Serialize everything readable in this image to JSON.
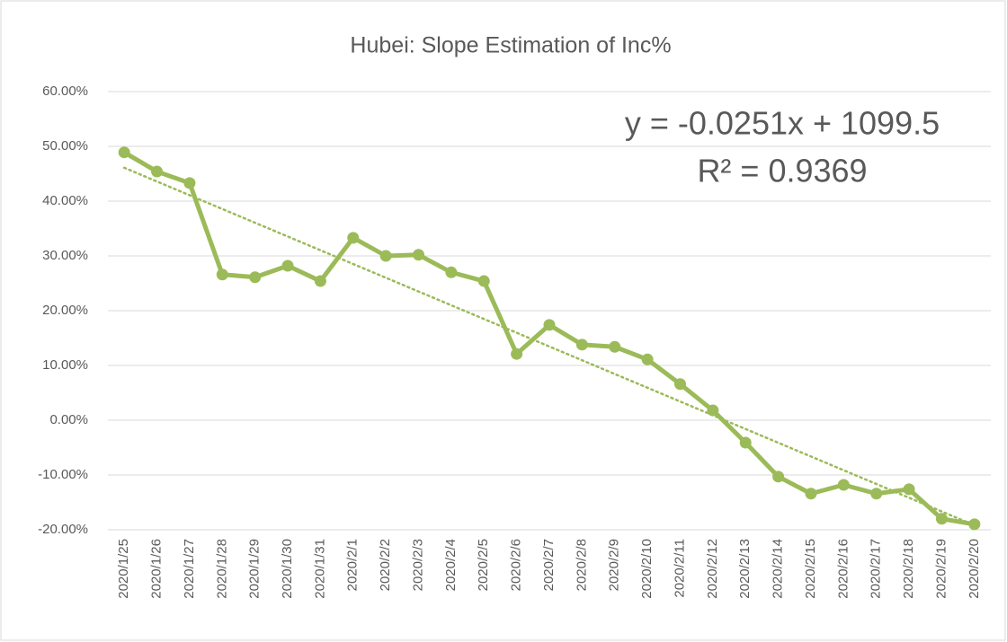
{
  "chart_data": {
    "type": "line",
    "title": "Hubei: Slope Estimation of Inc%",
    "annotations": [
      "y = -0.0251x + 1099.5",
      "R² = 0.9369"
    ],
    "categories": [
      "2020/1/25",
      "2020/1/26",
      "2020/1/27",
      "2020/1/28",
      "2020/1/29",
      "2020/1/30",
      "2020/1/31",
      "2020/2/1",
      "2020/2/2",
      "2020/2/3",
      "2020/2/4",
      "2020/2/5",
      "2020/2/6",
      "2020/2/7",
      "2020/2/8",
      "2020/2/9",
      "2020/2/10",
      "2020/2/11",
      "2020/2/12",
      "2020/2/13",
      "2020/2/14",
      "2020/2/15",
      "2020/2/16",
      "2020/2/17",
      "2020/2/18",
      "2020/2/19",
      "2020/2/20"
    ],
    "values": [
      48.9,
      45.4,
      43.3,
      26.6,
      26.1,
      28.2,
      25.4,
      33.3,
      30.0,
      30.2,
      27.0,
      25.4,
      12.1,
      17.4,
      13.8,
      13.4,
      11.1,
      6.6,
      1.8,
      -4.1,
      -10.3,
      -13.4,
      -11.8,
      -13.4,
      -12.6,
      -18.0,
      -19.0
    ],
    "color": "#9bbb59",
    "trendline": true,
    "ylim": [
      -20,
      60
    ],
    "yticks": [
      {
        "value": -20,
        "label": "-20.00%"
      },
      {
        "value": -10,
        "label": "-10.00%"
      },
      {
        "value": 0,
        "label": "0.00%"
      },
      {
        "value": 10,
        "label": "10.00%"
      },
      {
        "value": 20,
        "label": "20.00%"
      },
      {
        "value": 30,
        "label": "30.00%"
      },
      {
        "value": 40,
        "label": "40.00%"
      },
      {
        "value": 50,
        "label": "50.00%"
      },
      {
        "value": 60,
        "label": "60.00%"
      }
    ],
    "grid": true
  }
}
